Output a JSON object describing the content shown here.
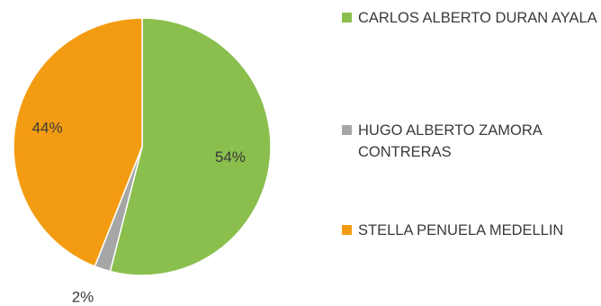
{
  "chart_data": {
    "type": "pie",
    "title": "",
    "slices": [
      {
        "label": "CARLOS ALBERTO DURAN AYALA",
        "value": 54,
        "data_label": "54%",
        "color": "#8ABF4E"
      },
      {
        "label": "HUGO ALBERTO ZAMORA CONTRERAS",
        "value": 2,
        "data_label": "2%",
        "color": "#A6A6A6"
      },
      {
        "label": "STELLA PENUELA MEDELLIN",
        "value": 44,
        "data_label": "44%",
        "color": "#F39C12"
      }
    ],
    "legend_position": "right",
    "start_angle_deg": 0,
    "direction": "clockwise"
  }
}
